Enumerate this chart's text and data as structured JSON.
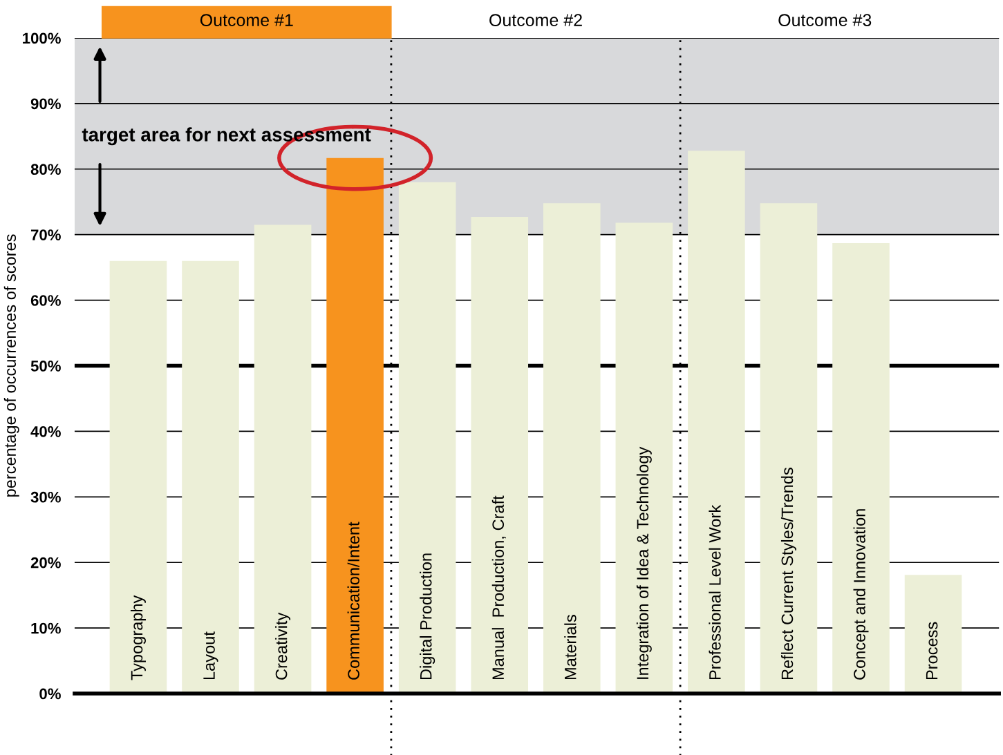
{
  "chart_data": {
    "type": "bar",
    "ylabel": "percentage of occurrences of scores",
    "categories": [
      "Typography",
      "Layout",
      "Creativity",
      "Communication/Intent",
      "Digital Production",
      "Manual  Production, Craft",
      "Materials",
      "Integration of Idea & Technology",
      "Professional Level Work",
      "Reflect Current Styles/Trends",
      "Concept and Innovation",
      "Process"
    ],
    "values": [
      66,
      66,
      71.5,
      81.7,
      78,
      72.7,
      74.8,
      71.8,
      82.8,
      74.8,
      68.7,
      18.1
    ],
    "colors": [
      "#ecefd7",
      "#ecefd7",
      "#ecefd7",
      "#f7931e",
      "#ecefd7",
      "#ecefd7",
      "#ecefd7",
      "#ecefd7",
      "#ecefd7",
      "#ecefd7",
      "#ecefd7",
      "#ecefd7"
    ],
    "ylim": [
      0,
      100
    ],
    "yticks": [
      {
        "value": 0,
        "label": "0%"
      },
      {
        "value": 10,
        "label": "10%"
      },
      {
        "value": 20,
        "label": "20%"
      },
      {
        "value": 30,
        "label": "30%"
      },
      {
        "value": 40,
        "label": "40%"
      },
      {
        "value": 50,
        "label": "50%"
      },
      {
        "value": 60,
        "label": "60%"
      },
      {
        "value": 70,
        "label": "70%"
      },
      {
        "value": 80,
        "label": "80%"
      },
      {
        "value": 90,
        "label": "90%"
      },
      {
        "value": 100,
        "label": "100%"
      }
    ],
    "grid": "y",
    "bands": [
      {
        "axis": "y",
        "from": 70,
        "to": 100,
        "label": "target area for next assessment",
        "color": "#d8d9db"
      }
    ],
    "ref_lines": [
      {
        "axis": "y",
        "value": 50,
        "color": "#000000"
      }
    ],
    "annotations": [
      "Outcome #1",
      "Outcome #2",
      "Outcome #3"
    ]
  }
}
